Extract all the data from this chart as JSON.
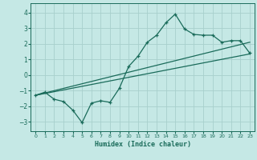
{
  "title": "",
  "xlabel": "Humidex (Indice chaleur)",
  "ylabel": "",
  "bg_color": "#c5e8e5",
  "line_color": "#1a6b5a",
  "grid_color": "#a8d0cc",
  "xlim": [
    -0.5,
    23.5
  ],
  "ylim": [
    -3.6,
    4.6
  ],
  "xticks": [
    0,
    1,
    2,
    3,
    4,
    5,
    6,
    7,
    8,
    9,
    10,
    11,
    12,
    13,
    14,
    15,
    16,
    17,
    18,
    19,
    20,
    21,
    22,
    23
  ],
  "yticks": [
    -3,
    -2,
    -1,
    0,
    1,
    2,
    3,
    4
  ],
  "main_x": [
    0,
    1,
    2,
    3,
    4,
    5,
    6,
    7,
    8,
    9,
    10,
    11,
    12,
    13,
    14,
    15,
    16,
    17,
    18,
    19,
    20,
    21,
    22,
    23
  ],
  "main_y": [
    -1.3,
    -1.1,
    -1.55,
    -1.7,
    -2.25,
    -3.05,
    -1.8,
    -1.65,
    -1.75,
    -0.85,
    0.55,
    1.2,
    2.1,
    2.55,
    3.35,
    3.9,
    2.95,
    2.6,
    2.55,
    2.55,
    2.1,
    2.2,
    2.2,
    1.4
  ],
  "line1_x": [
    0,
    23
  ],
  "line1_y": [
    -1.3,
    1.35
  ],
  "line2_x": [
    0,
    23
  ],
  "line2_y": [
    -1.3,
    2.1
  ]
}
